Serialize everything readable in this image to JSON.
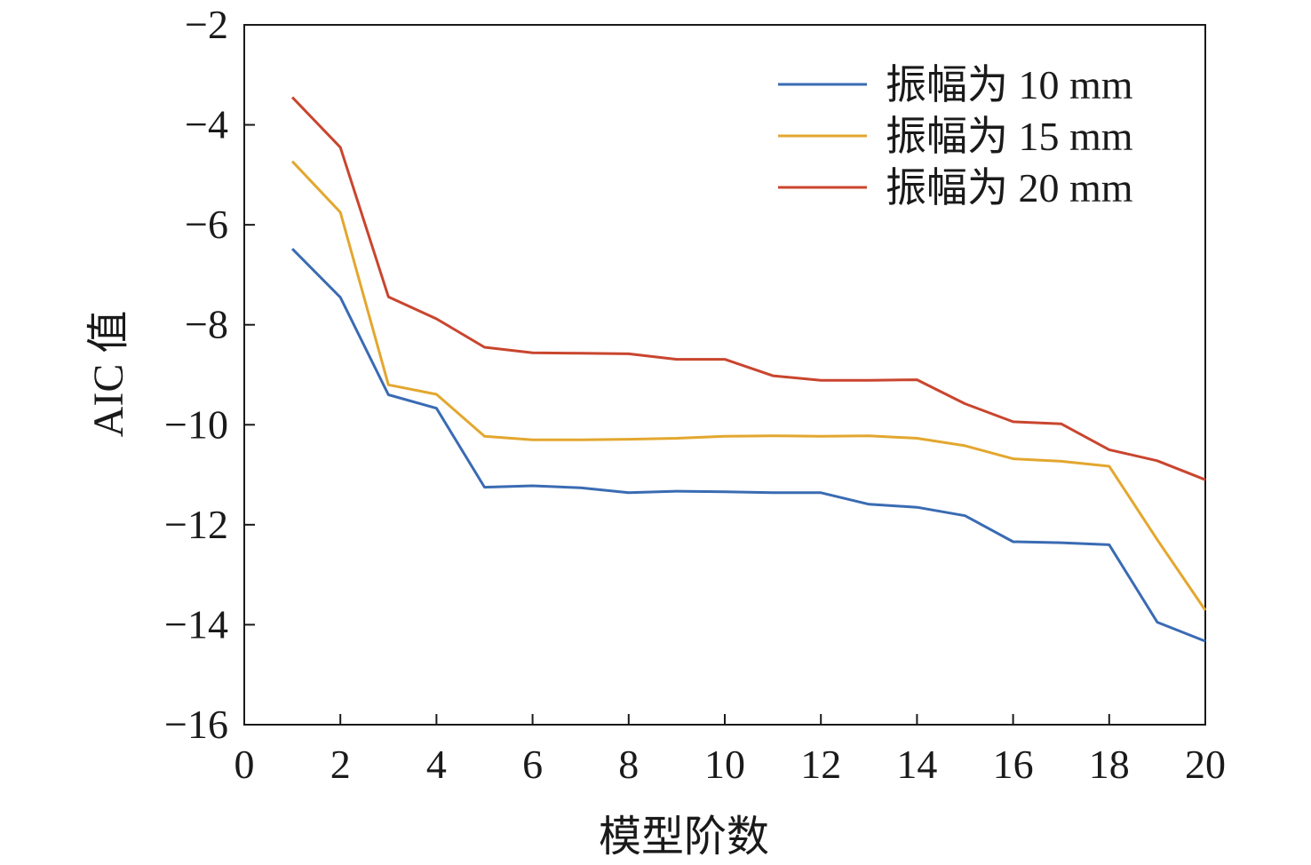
{
  "chart_data": {
    "type": "line",
    "title": "",
    "xlabel": "模型阶数",
    "ylabel": "AIC 值",
    "xlim": [
      0,
      20
    ],
    "ylim": [
      -16,
      -2
    ],
    "x_ticks": [
      0,
      2,
      4,
      6,
      8,
      10,
      12,
      14,
      16,
      18,
      20
    ],
    "x_tick_labels": [
      "0",
      "2",
      "4",
      "6",
      "8",
      "10",
      "12",
      "14",
      "16",
      "18",
      "20"
    ],
    "y_ticks": [
      -2,
      -4,
      -6,
      -8,
      -10,
      -12,
      -14,
      -16
    ],
    "y_tick_labels": [
      "−2",
      "−4",
      "−6",
      "−8",
      "−10",
      "−12",
      "−14",
      "−16"
    ],
    "grid": false,
    "legend_position": "top-right",
    "x": [
      1,
      2,
      3,
      4,
      5,
      6,
      7,
      8,
      9,
      10,
      11,
      12,
      13,
      14,
      15,
      16,
      17,
      18,
      19,
      20
    ],
    "series": [
      {
        "name": "振幅为 10 mm",
        "color": "#3a6bb3",
        "values": [
          -6.48,
          -7.45,
          -9.4,
          -9.67,
          -11.25,
          -11.22,
          -11.26,
          -11.36,
          -11.33,
          -11.34,
          -11.36,
          -11.36,
          -11.59,
          -11.65,
          -11.82,
          -12.34,
          -12.36,
          -12.4,
          -13.95,
          -14.33
        ]
      },
      {
        "name": "振幅为 15 mm",
        "color": "#e3a72f",
        "values": [
          -4.73,
          -5.75,
          -9.2,
          -9.39,
          -10.23,
          -10.3,
          -10.3,
          -10.29,
          -10.27,
          -10.23,
          -10.22,
          -10.23,
          -10.22,
          -10.27,
          -10.42,
          -10.68,
          -10.73,
          -10.83,
          -12.3,
          -13.71
        ]
      },
      {
        "name": "振幅为 20 mm",
        "color": "#c9452e",
        "values": [
          -3.45,
          -4.45,
          -7.44,
          -7.88,
          -8.45,
          -8.56,
          -8.57,
          -8.58,
          -8.69,
          -8.69,
          -9.02,
          -9.11,
          -9.11,
          -9.1,
          -9.58,
          -9.94,
          -9.98,
          -10.5,
          -10.72,
          -11.1
        ]
      }
    ]
  }
}
